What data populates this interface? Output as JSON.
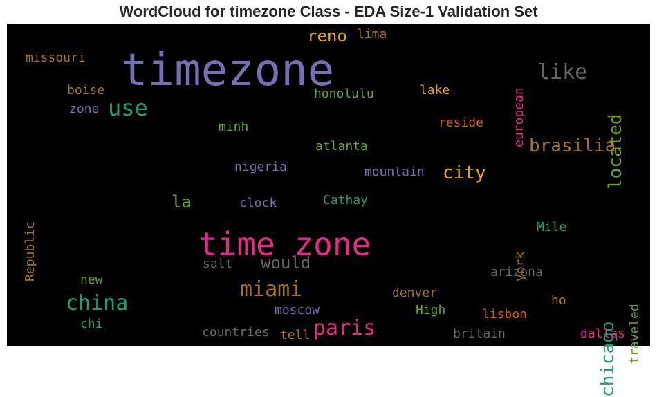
{
  "chart_data": {
    "type": "wordcloud",
    "title": "WordCloud for timezone Class - EDA Size-1 Validation Set",
    "background": "#000000",
    "palette": [
      "#7570b3",
      "#1b9e77",
      "#d95f02",
      "#e7298a",
      "#66a61e",
      "#e6ab02",
      "#a6761d",
      "#666666"
    ],
    "words": [
      {
        "text": "timezone",
        "color": "#7570b3",
        "rank": 1
      },
      {
        "text": "time zone",
        "color": "#e7298a",
        "rank": 2
      },
      {
        "text": "use",
        "color": "#1b9e77",
        "rank": 3
      },
      {
        "text": "china",
        "color": "#1b9e77",
        "rank": 3
      },
      {
        "text": "like",
        "color": "#666666",
        "rank": 4
      },
      {
        "text": "located",
        "color": "#66a61e",
        "rank": 4,
        "vertical": true
      },
      {
        "text": "miami",
        "color": "#a6761d",
        "rank": 4
      },
      {
        "text": "paris",
        "color": "#e7298a",
        "rank": 4
      },
      {
        "text": "chicago",
        "color": "#1b9e77",
        "rank": 4,
        "vertical": true
      },
      {
        "text": "brasilia",
        "color": "#a6761d",
        "rank": 5
      },
      {
        "text": "city",
        "color": "#e6ab02",
        "rank": 5
      },
      {
        "text": "reno",
        "color": "#e6ab02",
        "rank": 5
      },
      {
        "text": "la",
        "color": "#66a61e",
        "rank": 5
      },
      {
        "text": "would",
        "color": "#666666",
        "rank": 5
      },
      {
        "text": "european",
        "color": "#e7298a",
        "rank": 6,
        "vertical": true
      },
      {
        "text": "missouri",
        "color": "#a6761d",
        "rank": 6
      },
      {
        "text": "lima",
        "color": "#a6761d",
        "rank": 6
      },
      {
        "text": "boise",
        "color": "#a6761d",
        "rank": 6
      },
      {
        "text": "honolulu",
        "color": "#66a61e",
        "rank": 6
      },
      {
        "text": "lake",
        "color": "#e6ab02",
        "rank": 6
      },
      {
        "text": "zone",
        "color": "#7570b3",
        "rank": 6
      },
      {
        "text": "reside",
        "color": "#d95f02",
        "rank": 6
      },
      {
        "text": "minh",
        "color": "#66a61e",
        "rank": 6
      },
      {
        "text": "atlanta",
        "color": "#66a61e",
        "rank": 6
      },
      {
        "text": "Republic",
        "color": "#a6761d",
        "rank": 6,
        "vertical": true
      },
      {
        "text": "nigeria",
        "color": "#7570b3",
        "rank": 6
      },
      {
        "text": "mountain",
        "color": "#7570b3",
        "rank": 6
      },
      {
        "text": "Cathay",
        "color": "#1b9e77",
        "rank": 6
      },
      {
        "text": "clock",
        "color": "#7570b3",
        "rank": 6
      },
      {
        "text": "york",
        "color": "#a6761d",
        "rank": 6,
        "vertical": true
      },
      {
        "text": "Mile",
        "color": "#1b9e77",
        "rank": 6
      },
      {
        "text": "salt",
        "color": "#666666",
        "rank": 6
      },
      {
        "text": "traveled",
        "color": "#66a61e",
        "rank": 6,
        "vertical": true
      },
      {
        "text": "arizona",
        "color": "#666666",
        "rank": 6
      },
      {
        "text": "new",
        "color": "#66a61e",
        "rank": 6
      },
      {
        "text": "denver",
        "color": "#a6761d",
        "rank": 6
      },
      {
        "text": "ho",
        "color": "#a6761d",
        "rank": 6
      },
      {
        "text": "moscow",
        "color": "#7570b3",
        "rank": 6
      },
      {
        "text": "High",
        "color": "#66a61e",
        "rank": 6
      },
      {
        "text": "lisbon",
        "color": "#d95f02",
        "rank": 6
      },
      {
        "text": "chi",
        "color": "#1b9e77",
        "rank": 6
      },
      {
        "text": "countries",
        "color": "#666666",
        "rank": 6
      },
      {
        "text": "tell",
        "color": "#a6761d",
        "rank": 6
      },
      {
        "text": "britain",
        "color": "#666666",
        "rank": 6
      },
      {
        "text": "dallas",
        "color": "#e7298a",
        "rank": 6
      }
    ]
  }
}
